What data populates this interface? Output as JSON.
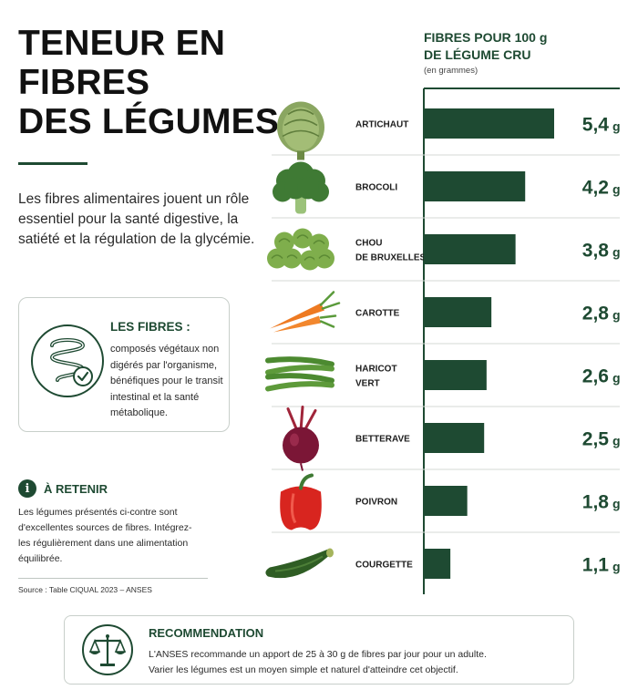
{
  "title": {
    "line1": "TENEUR EN",
    "line2": "FIBRES",
    "line3": "DES LÉGUMES"
  },
  "intro": "Les fibres alimentaires jouent un rôle essentiel pour la santé digestive, la satiété et la régulation de la glycémie.",
  "definition": {
    "icon": "intestine-check-icon",
    "title": "LES FIBRES :",
    "text": "composés végétaux non digérés par l'organisme, bénéfiques pour le transit intestinal et la santé métabolique."
  },
  "retain": {
    "icon": "info-icon",
    "icon_glyph": "i",
    "title": "À RETENIR",
    "text": "Les légumes présentés ci-contre sont d'excellentes sources de fibres. Intégrez-les régulièrement dans une alimentation équilibrée."
  },
  "source": "Source : Table CIQUAL 2023 – ANSES",
  "colors": {
    "accent": "#1e4a32",
    "bar": "#1e4a32",
    "grid": "#d4d9d6"
  },
  "chart_data": {
    "type": "bar",
    "orientation": "horizontal",
    "title_line1": "FIBRES POUR 100 g",
    "title_line2": "DE LÉGUME CRU",
    "subtitle": "(en grammes)",
    "unit": "g",
    "categories": [
      [
        "ARTICHAUT"
      ],
      [
        "BROCOLI"
      ],
      [
        "CHOU",
        "DE BRUXELLES"
      ],
      [
        "CAROTTE"
      ],
      [
        "HARICOT",
        "VERT"
      ],
      [
        "BETTERAVE"
      ],
      [
        "POIVRON"
      ],
      [
        "COURGETTE"
      ]
    ],
    "values": [
      5.4,
      4.2,
      3.8,
      2.8,
      2.6,
      2.5,
      1.8,
      1.1
    ],
    "value_labels": [
      "5,4",
      "4,2",
      "3,8",
      "2,8",
      "2,6",
      "2,5",
      "1,8",
      "1,1"
    ],
    "icons": [
      "artichoke-icon",
      "broccoli-icon",
      "brussels-sprouts-icon",
      "carrot-icon",
      "green-beans-icon",
      "beetroot-icon",
      "bell-pepper-icon",
      "zucchini-icon"
    ],
    "xlim": [
      0,
      5.4
    ],
    "grid": false
  },
  "recommendation": {
    "icon": "scales-icon",
    "title": "RECOMMENDATION",
    "line1": "L'ANSES recommande un apport de 25 à 30 g de fibres par jour pour un adulte.",
    "line2": "Varier les légumes est un moyen simple et naturel d'atteindre cet objectif."
  }
}
